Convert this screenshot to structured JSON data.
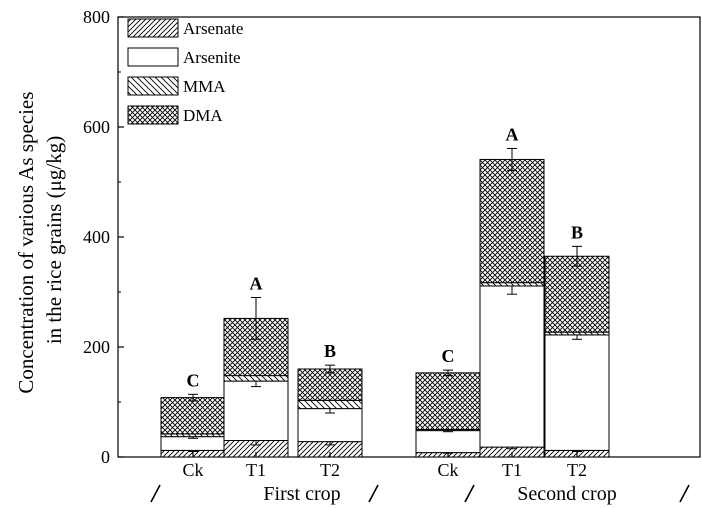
{
  "chart_data": {
    "type": "bar",
    "stacked": true,
    "title": "",
    "ylabel": "Concentration of various As species in the rice grains (μg/kg)",
    "ylabel_lines": [
      "Concentration of various As species",
      "in the rice grains (μg/kg)"
    ],
    "ylim": [
      0,
      800
    ],
    "yticks": [
      "0",
      "200",
      "400",
      "600",
      "800"
    ],
    "groups": [
      {
        "label": "First crop",
        "categories": [
          "Ck",
          "T1",
          "T2"
        ]
      },
      {
        "label": "Second crop",
        "categories": [
          "Ck",
          "T1",
          "T2"
        ]
      }
    ],
    "categories": [
      "Ck",
      "T1",
      "T2",
      "Ck",
      "T1",
      "T2"
    ],
    "series": [
      {
        "name": "Arsenate",
        "values": [
          12,
          30,
          28,
          8,
          18,
          12
        ],
        "errors": [
          2,
          8,
          6,
          1,
          3,
          2
        ],
        "pattern": "diag"
      },
      {
        "name": "Arsenite",
        "values": [
          25,
          108,
          60,
          40,
          293,
          210
        ],
        "errors": [
          3,
          10,
          8,
          2,
          15,
          8
        ],
        "pattern": "none"
      },
      {
        "name": "MMA",
        "values": [
          5,
          10,
          15,
          2,
          6,
          5
        ],
        "errors": [
          0,
          0,
          0,
          0,
          0,
          0
        ],
        "pattern": "backdiag"
      },
      {
        "name": "DMA",
        "values": [
          66,
          104,
          57,
          103,
          224,
          138
        ],
        "errors": [
          6,
          38,
          7,
          5,
          20,
          18
        ],
        "pattern": "cross"
      }
    ],
    "significance_labels": [
      "C",
      "A",
      "B",
      "C",
      "A",
      "B"
    ],
    "legend_position": "top-left",
    "grid": false
  }
}
